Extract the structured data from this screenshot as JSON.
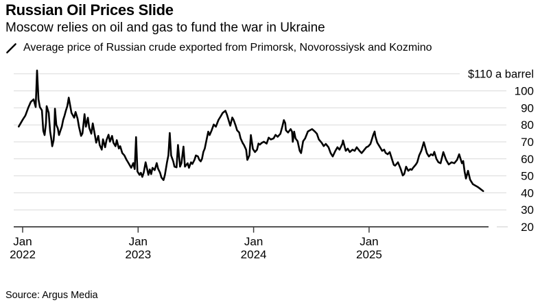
{
  "chart_data": {
    "type": "line",
    "title": "Russian Oil Prices Slide",
    "subtitle": "Moscow relies on oil and gas to fund the war in Ukraine",
    "source": "Source: Argus Media",
    "unit_label": "$110 a barrel",
    "unit_label_value": 110,
    "y_ticks": [
      100,
      90,
      80,
      70,
      60,
      50,
      40,
      30,
      20
    ],
    "ylim": [
      20,
      115
    ],
    "grid": true,
    "legend_position": "top-left",
    "x_ticks": [
      {
        "top": "Jan",
        "bottom": "2022",
        "t": 2022
      },
      {
        "top": "Jan",
        "bottom": "2023",
        "t": 2023
      },
      {
        "top": "Jan",
        "bottom": "2024",
        "t": 2024
      },
      {
        "top": "Jan",
        "bottom": "2025",
        "t": 2025
      }
    ],
    "xlim": [
      2021.96,
      2026.0
    ],
    "colors": {
      "line": "#000000",
      "grid": "#d9d9d9",
      "axis": "#3b3b3b",
      "text": "#000000"
    },
    "series": [
      {
        "name": "Average price of Russian crude exported from Primorsk, Novorossiysk and Kozmino",
        "marker": "slash-icon",
        "points": [
          [
            2021.966,
            79
          ],
          [
            2022.0,
            83
          ],
          [
            2022.024,
            85.5
          ],
          [
            2022.048,
            90
          ],
          [
            2022.071,
            93.5
          ],
          [
            2022.095,
            95
          ],
          [
            2022.113,
            90.5
          ],
          [
            2022.125,
            112
          ],
          [
            2022.137,
            95
          ],
          [
            2022.149,
            90.5
          ],
          [
            2022.167,
            88.5
          ],
          [
            2022.179,
            76.5
          ],
          [
            2022.19,
            74
          ],
          [
            2022.202,
            81
          ],
          [
            2022.208,
            91
          ],
          [
            2022.226,
            87
          ],
          [
            2022.238,
            76
          ],
          [
            2022.25,
            70.8
          ],
          [
            2022.256,
            67.4
          ],
          [
            2022.268,
            70.8
          ],
          [
            2022.274,
            76
          ],
          [
            2022.28,
            89.5
          ],
          [
            2022.292,
            80
          ],
          [
            2022.304,
            78
          ],
          [
            2022.315,
            74
          ],
          [
            2022.327,
            76.5
          ],
          [
            2022.339,
            79
          ],
          [
            2022.351,
            83
          ],
          [
            2022.363,
            85.5
          ],
          [
            2022.375,
            88.5
          ],
          [
            2022.387,
            91
          ],
          [
            2022.399,
            96
          ],
          [
            2022.423,
            87
          ],
          [
            2022.446,
            84.2
          ],
          [
            2022.458,
            87.6
          ],
          [
            2022.476,
            83.6
          ],
          [
            2022.488,
            78.9
          ],
          [
            2022.506,
            73.5
          ],
          [
            2022.518,
            75
          ],
          [
            2022.536,
            86.3
          ],
          [
            2022.548,
            78.9
          ],
          [
            2022.565,
            84.2
          ],
          [
            2022.577,
            78.2
          ],
          [
            2022.595,
            74.8
          ],
          [
            2022.607,
            80.9
          ],
          [
            2022.625,
            74.2
          ],
          [
            2022.637,
            69.5
          ],
          [
            2022.655,
            73.5
          ],
          [
            2022.667,
            68.1
          ],
          [
            2022.685,
            65.4
          ],
          [
            2022.696,
            71.5
          ],
          [
            2022.714,
            66.8
          ],
          [
            2022.726,
            71
          ],
          [
            2022.744,
            74.2
          ],
          [
            2022.756,
            70.1
          ],
          [
            2022.774,
            73.5
          ],
          [
            2022.786,
            69.5
          ],
          [
            2022.804,
            67.4
          ],
          [
            2022.815,
            71
          ],
          [
            2022.833,
            66.1
          ],
          [
            2022.845,
            67.4
          ],
          [
            2022.863,
            63.4
          ],
          [
            2022.881,
            62
          ],
          [
            2022.899,
            59.5
          ],
          [
            2022.917,
            57.5
          ],
          [
            2022.94,
            54.7
          ],
          [
            2022.958,
            57.5
          ],
          [
            2022.97,
            54
          ],
          [
            2022.982,
            72.8
          ],
          [
            2022.994,
            52.6
          ],
          [
            2023.012,
            50.6
          ],
          [
            2023.024,
            51.8
          ],
          [
            2023.036,
            49.4
          ],
          [
            2023.048,
            51.8
          ],
          [
            2023.065,
            58
          ],
          [
            2023.077,
            54.2
          ],
          [
            2023.089,
            50.6
          ],
          [
            2023.101,
            53.8
          ],
          [
            2023.113,
            51
          ],
          [
            2023.125,
            54.7
          ],
          [
            2023.143,
            53.4
          ],
          [
            2023.161,
            57.5
          ],
          [
            2023.173,
            54.2
          ],
          [
            2023.19,
            51.8
          ],
          [
            2023.202,
            49
          ],
          [
            2023.22,
            47.5
          ],
          [
            2023.232,
            50.5
          ],
          [
            2023.25,
            58
          ],
          [
            2023.262,
            62
          ],
          [
            2023.274,
            75.2
          ],
          [
            2023.286,
            62
          ],
          [
            2023.304,
            58.5
          ],
          [
            2023.315,
            55.4
          ],
          [
            2023.333,
            55
          ],
          [
            2023.345,
            68.2
          ],
          [
            2023.363,
            55.4
          ],
          [
            2023.375,
            57.4
          ],
          [
            2023.393,
            67.2
          ],
          [
            2023.405,
            55.4
          ],
          [
            2023.429,
            57.4
          ],
          [
            2023.44,
            54.7
          ],
          [
            2023.458,
            58
          ],
          [
            2023.47,
            57
          ],
          [
            2023.488,
            59.4
          ],
          [
            2023.5,
            62
          ],
          [
            2023.518,
            61.4
          ],
          [
            2023.53,
            59.4
          ],
          [
            2023.542,
            58.5
          ],
          [
            2023.553,
            60
          ],
          [
            2023.565,
            64.1
          ],
          [
            2023.577,
            66
          ],
          [
            2023.589,
            70
          ],
          [
            2023.607,
            76
          ],
          [
            2023.619,
            74
          ],
          [
            2023.637,
            76.8
          ],
          [
            2023.655,
            80.2
          ],
          [
            2023.673,
            78.9
          ],
          [
            2023.696,
            82.9
          ],
          [
            2023.714,
            84.9
          ],
          [
            2023.732,
            87
          ],
          [
            2023.756,
            88.3
          ],
          [
            2023.768,
            86.2
          ],
          [
            2023.786,
            82.2
          ],
          [
            2023.798,
            79.5
          ],
          [
            2023.815,
            84.3
          ],
          [
            2023.827,
            82.9
          ],
          [
            2023.845,
            79.5
          ],
          [
            2023.857,
            76.8
          ],
          [
            2023.875,
            75.5
          ],
          [
            2023.887,
            72.1
          ],
          [
            2023.905,
            69.4
          ],
          [
            2023.917,
            68.1
          ],
          [
            2023.935,
            65.4
          ],
          [
            2023.946,
            59.4
          ],
          [
            2023.964,
            62.1
          ],
          [
            2023.976,
            74
          ],
          [
            2023.994,
            65.8
          ],
          [
            2024.012,
            64
          ],
          [
            2024.03,
            65.4
          ],
          [
            2024.042,
            69
          ],
          [
            2024.054,
            68.4
          ],
          [
            2024.071,
            69.4
          ],
          [
            2024.089,
            70.1
          ],
          [
            2024.113,
            69
          ],
          [
            2024.131,
            72.5
          ],
          [
            2024.149,
            71.4
          ],
          [
            2024.173,
            72
          ],
          [
            2024.19,
            74.1
          ],
          [
            2024.208,
            73
          ],
          [
            2024.232,
            74.7
          ],
          [
            2024.25,
            79.4
          ],
          [
            2024.262,
            82.8
          ],
          [
            2024.274,
            81
          ],
          [
            2024.28,
            76.8
          ],
          [
            2024.298,
            75.5
          ],
          [
            2024.321,
            77.5
          ],
          [
            2024.333,
            76
          ],
          [
            2024.339,
            70
          ],
          [
            2024.351,
            76
          ],
          [
            2024.363,
            72
          ],
          [
            2024.381,
            70.4
          ],
          [
            2024.399,
            64.7
          ],
          [
            2024.411,
            63.4
          ],
          [
            2024.429,
            70.4
          ],
          [
            2024.446,
            72
          ],
          [
            2024.47,
            76.1
          ],
          [
            2024.488,
            76.8
          ],
          [
            2024.506,
            77.5
          ],
          [
            2024.53,
            76.1
          ],
          [
            2024.548,
            74.8
          ],
          [
            2024.565,
            71.4
          ],
          [
            2024.589,
            69.5
          ],
          [
            2024.607,
            67.5
          ],
          [
            2024.625,
            68.8
          ],
          [
            2024.649,
            66.8
          ],
          [
            2024.667,
            63.4
          ],
          [
            2024.685,
            61.4
          ],
          [
            2024.708,
            64.7
          ],
          [
            2024.726,
            66.8
          ],
          [
            2024.744,
            65.4
          ],
          [
            2024.768,
            68.8
          ],
          [
            2024.774,
            70.8
          ],
          [
            2024.798,
            64.7
          ],
          [
            2024.815,
            66
          ],
          [
            2024.833,
            64
          ],
          [
            2024.857,
            65.4
          ],
          [
            2024.875,
            64.7
          ],
          [
            2024.893,
            66.8
          ],
          [
            2024.917,
            64.7
          ],
          [
            2024.935,
            63.4
          ],
          [
            2024.952,
            64.7
          ],
          [
            2024.976,
            66.8
          ],
          [
            2024.994,
            67.4
          ],
          [
            2025.012,
            68.8
          ],
          [
            2025.036,
            74.1
          ],
          [
            2025.048,
            76.1
          ],
          [
            2025.054,
            73.4
          ],
          [
            2025.071,
            69.5
          ],
          [
            2025.095,
            66.8
          ],
          [
            2025.113,
            64.7
          ],
          [
            2025.131,
            65.4
          ],
          [
            2025.143,
            63.5
          ],
          [
            2025.161,
            62.7
          ],
          [
            2025.179,
            64
          ],
          [
            2025.202,
            59
          ],
          [
            2025.214,
            56.5
          ],
          [
            2025.226,
            56
          ],
          [
            2025.25,
            58
          ],
          [
            2025.274,
            54
          ],
          [
            2025.292,
            50.2
          ],
          [
            2025.304,
            51
          ],
          [
            2025.321,
            55.4
          ],
          [
            2025.339,
            53
          ],
          [
            2025.357,
            54
          ],
          [
            2025.369,
            53.5
          ],
          [
            2025.381,
            54.7
          ],
          [
            2025.405,
            56.7
          ],
          [
            2025.417,
            58
          ],
          [
            2025.434,
            62
          ],
          [
            2025.452,
            64.7
          ],
          [
            2025.474,
            69.8
          ],
          [
            2025.5,
            63.4
          ],
          [
            2025.518,
            61.4
          ],
          [
            2025.536,
            62.7
          ],
          [
            2025.553,
            62
          ],
          [
            2025.565,
            64.1
          ],
          [
            2025.583,
            60
          ],
          [
            2025.601,
            58
          ],
          [
            2025.619,
            57.4
          ],
          [
            2025.643,
            64
          ],
          [
            2025.667,
            59.4
          ],
          [
            2025.69,
            56.7
          ],
          [
            2025.714,
            58
          ],
          [
            2025.738,
            57.4
          ],
          [
            2025.762,
            59.4
          ],
          [
            2025.78,
            62.7
          ],
          [
            2025.804,
            57.4
          ],
          [
            2025.815,
            58.7
          ],
          [
            2025.827,
            52.6
          ],
          [
            2025.839,
            48.4
          ],
          [
            2025.857,
            53
          ],
          [
            2025.875,
            47.7
          ],
          [
            2025.899,
            45.1
          ],
          [
            2025.917,
            44.4
          ],
          [
            2025.94,
            43.5
          ],
          [
            2025.964,
            42.3
          ],
          [
            2025.988,
            41
          ]
        ]
      }
    ]
  }
}
